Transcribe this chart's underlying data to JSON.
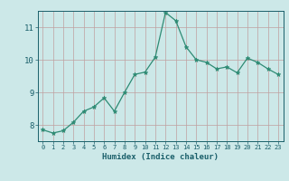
{
  "x": [
    0,
    1,
    2,
    3,
    4,
    5,
    6,
    7,
    8,
    9,
    10,
    11,
    12,
    13,
    14,
    15,
    16,
    17,
    18,
    19,
    20,
    21,
    22,
    23
  ],
  "y": [
    7.85,
    7.75,
    7.82,
    8.08,
    8.42,
    8.55,
    8.83,
    8.42,
    9.0,
    9.55,
    9.62,
    10.08,
    11.45,
    11.2,
    10.4,
    10.0,
    9.92,
    9.72,
    9.78,
    9.6,
    10.05,
    9.92,
    9.72,
    9.55
  ],
  "line_color": "#2e8b74",
  "marker": "*",
  "marker_color": "#2e8b74",
  "bg_color": "#cce8e8",
  "grid_color": "#c0a0a0",
  "xlabel": "Humidex (Indice chaleur)",
  "xlabel_color": "#1a5f6a",
  "tick_color": "#1a5f6a",
  "axis_color": "#1a5f6a",
  "ylim": [
    7.5,
    11.5
  ],
  "yticks": [
    8,
    9,
    10,
    11
  ],
  "xticks": [
    0,
    1,
    2,
    3,
    4,
    5,
    6,
    7,
    8,
    9,
    10,
    11,
    12,
    13,
    14,
    15,
    16,
    17,
    18,
    19,
    20,
    21,
    22,
    23
  ]
}
